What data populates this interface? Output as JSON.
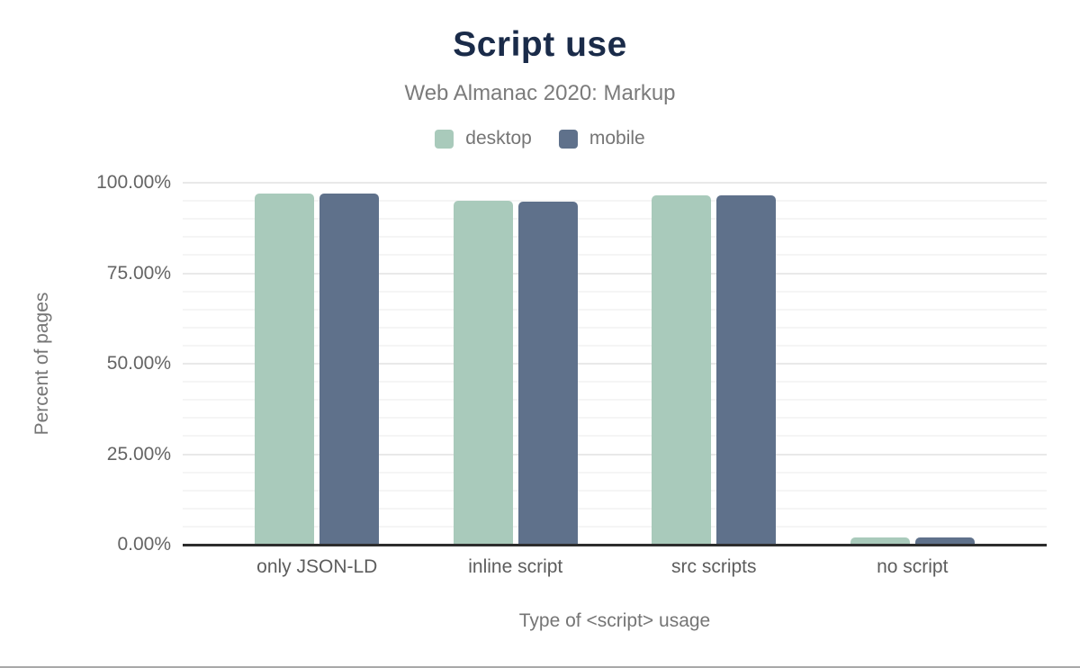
{
  "header": {
    "title": "Script use",
    "subtitle": "Web Almanac 2020: Markup"
  },
  "legend": [
    {
      "label": "desktop",
      "color": "#a9cabb"
    },
    {
      "label": "mobile",
      "color": "#5f718b"
    }
  ],
  "colors": {
    "title_navy": "#1a2b49",
    "desktop_green": "#a9cabb",
    "mobile_slate": "#5f718b",
    "axis_line": "#2d2d2d",
    "major_grid": "#e9e9e9",
    "minor_grid": "#f5f5f5",
    "label_gray": "#757575"
  },
  "chart_data": {
    "type": "bar",
    "title": "Script use",
    "subtitle": "Web Almanac 2020: Markup",
    "categories": [
      "only JSON-LD",
      "inline script",
      "src scripts",
      "no script"
    ],
    "series": [
      {
        "name": "desktop",
        "color": "#a9cabb",
        "values": [
          97.0,
          95.0,
          96.6,
          2.0
        ]
      },
      {
        "name": "mobile",
        "color": "#5f718b",
        "values": [
          96.9,
          94.9,
          96.4,
          2.1
        ]
      }
    ],
    "xlabel": "Type of <script> usage",
    "ylabel": "Percent of pages",
    "ylim": [
      0,
      100
    ],
    "y_ticks": [
      "0.00%",
      "25.00%",
      "50.00%",
      "75.00%",
      "100.00%"
    ],
    "y_major_step": 25,
    "y_minor_step": 5,
    "grid": "horizontal",
    "legend_position": "top",
    "bar_corner_radius": "rounded-top"
  }
}
